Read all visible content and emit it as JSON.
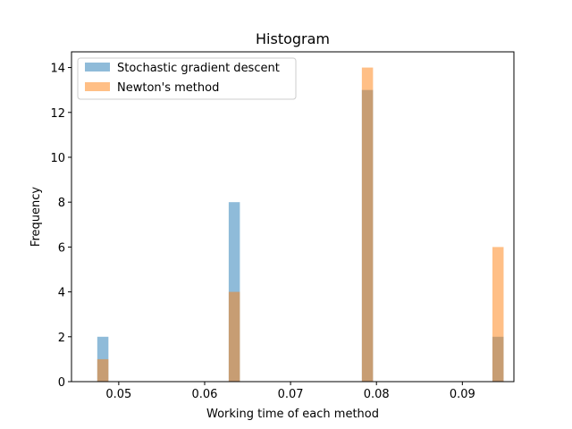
{
  "chart_data": {
    "type": "bar",
    "title": "Histogram",
    "xlabel": "Working time of each method",
    "ylabel": "Frequency",
    "xlim": [
      0.0445,
      0.096
    ],
    "ylim": [
      0,
      14.7
    ],
    "xticks": [
      0.05,
      0.06,
      0.07,
      0.08,
      0.09
    ],
    "xtick_labels": [
      "0.05",
      "0.06",
      "0.07",
      "0.08",
      "0.09"
    ],
    "yticks": [
      0,
      2,
      4,
      6,
      8,
      10,
      12,
      14
    ],
    "ytick_labels": [
      "0",
      "2",
      "4",
      "6",
      "8",
      "10",
      "12",
      "14"
    ],
    "bin_width": 0.0013,
    "bins": [
      0.0475,
      0.0628,
      0.0783,
      0.0935
    ],
    "series": [
      {
        "name": "Stochastic gradient descent",
        "color": "#1f77b4",
        "alpha": 0.5,
        "values": [
          2,
          8,
          13,
          2
        ]
      },
      {
        "name": "Newton's method",
        "color": "#ff7f0e",
        "alpha": 0.5,
        "values": [
          1,
          4,
          14,
          6
        ]
      }
    ],
    "legend_position": "top-left",
    "grid": false
  }
}
